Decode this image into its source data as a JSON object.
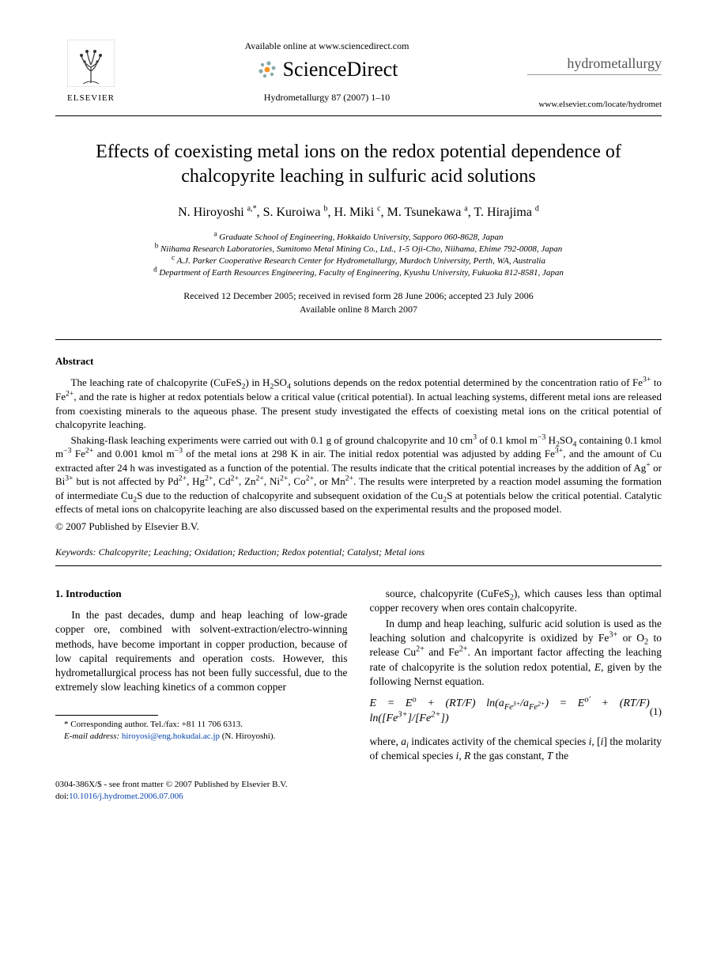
{
  "header": {
    "available_online": "Available online at www.sciencedirect.com",
    "sciencedirect": "ScienceDirect",
    "journal_ref": "Hydrometallurgy 87 (2007) 1–10",
    "elsevier_label": "ELSEVIER",
    "journal_brand": "hydrometallurgy",
    "locate_url": "www.elsevier.com/locate/hydromet"
  },
  "title": "Effects of coexisting metal ions on the redox potential dependence of chalcopyrite leaching in sulfuric acid solutions",
  "authors_html": "N. Hiroyoshi <sup>a,*</sup>, S. Kuroiwa <sup>b</sup>, H. Miki <sup>c</sup>, M. Tsunekawa <sup>a</sup>, T. Hirajima <sup>d</sup>",
  "affiliations": [
    "<sup>a</sup> Graduate School of Engineering, Hokkaido University, Sapporo 060-8628, Japan",
    "<sup>b</sup> Niihama Research Laboratories, Sumitomo Metal Mining Co., Ltd., 1-5 Oji-Cho, Niihama, Ehime 792-0008, Japan",
    "<sup>c</sup> A.J. Parker Cooperative Research Center for Hydrometallurgy, Murdoch University, Perth, WA, Australia",
    "<sup>d</sup> Department of Earth Resources Engineering, Faculty of Engineering, Kyushu University, Fukuoka 812-8581, Japan"
  ],
  "dates": {
    "received": "Received 12 December 2005; received in revised form 28 June 2006; accepted 23 July 2006",
    "online": "Available online 8 March 2007"
  },
  "abstract": {
    "heading": "Abstract",
    "p1": "The leaching rate of chalcopyrite (CuFeS<sub>2</sub>) in H<sub>2</sub>SO<sub>4</sub> solutions depends on the redox potential determined by the concentration ratio of Fe<sup>3+</sup> to Fe<sup>2+</sup>, and the rate is higher at redox potentials below a critical value (critical potential). In actual leaching systems, different metal ions are released from coexisting minerals to the aqueous phase. The present study investigated the effects of coexisting metal ions on the critical potential of chalcopyrite leaching.",
    "p2": "Shaking-flask leaching experiments were carried out with 0.1 g of ground chalcopyrite and 10 cm<sup>3</sup> of 0.1 kmol m<sup>−3</sup> H<sub>2</sub>SO<sub>4</sub> containing 0.1 kmol m<sup>−3</sup> Fe<sup>2+</sup> and 0.001 kmol m<sup>−3</sup> of the metal ions at 298 K in air. The initial redox potential was adjusted by adding Fe<sup>3+</sup>, and the amount of Cu extracted after 24 h was investigated as a function of the potential. The results indicate that the critical potential increases by the addition of Ag<sup>+</sup> or Bi<sup>3+</sup> but is not affected by Pd<sup>2+</sup>, Hg<sup>2+</sup>, Cd<sup>2+</sup>, Zn<sup>2+</sup>, Ni<sup>2+</sup>, Co<sup>2+</sup>, or Mn<sup>2+</sup>. The results were interpreted by a reaction model assuming the formation of intermediate Cu<sub>2</sub>S due to the reduction of chalcopyrite and subsequent oxidation of the Cu<sub>2</sub>S at potentials below the critical potential. Catalytic effects of metal ions on chalcopyrite leaching are also discussed based on the experimental results and the proposed model.",
    "copyright": "© 2007 Published by Elsevier B.V."
  },
  "keywords": {
    "label": "Keywords:",
    "text": "Chalcopyrite; Leaching; Oxidation; Reduction; Redox potential; Catalyst; Metal ions"
  },
  "intro": {
    "heading": "1. Introduction",
    "left_p1": "In the past decades, dump and heap leaching of low-grade copper ore, combined with solvent-extraction/electro-winning methods, have become important in copper production, because of low capital requirements and operation costs. However, this hydrometallurgical process has not been fully successful, due to the extremely slow leaching kinetics of a common copper",
    "right_p1": "source, chalcopyrite (CuFeS<sub>2</sub>), which causes less than optimal copper recovery when ores contain chalcopyrite.",
    "right_p2": "In dump and heap leaching, sulfuric acid solution is used as the leaching solution and chalcopyrite is oxidized by Fe<sup>3+</sup> or O<sub>2</sub> to release Cu<sup>2+</sup> and Fe<sup>2+</sup>. An important factor affecting the leaching rate of chalcopyrite is the solution redox potential, <i>E</i>, given by the following Nernst equation.",
    "equation": "E = E<sup>o</sup> + (RT/F) ln(a<sub>Fe<sup>3+</sup></sub>/a<sub>Fe<sup>2+</sup></sub>) = E<sup>o′</sup> + (RT/F) ln([Fe<sup>3+</sup>]/[Fe<sup>2+</sup>])",
    "equation_num": "(1)",
    "right_p3": "where, <i>a<sub>i</sub></i> indicates activity of the chemical species <i>i</i>, [<i>i</i>] the molarity of chemical species <i>i</i>, <i>R</i> the gas constant, <i>T</i> the"
  },
  "footnote": {
    "corr": "* Corresponding author. Tel./fax: +81 11 706 6313.",
    "email_label": "E-mail address:",
    "email": "hiroyosi@eng.hokudai.ac.jp",
    "email_tail": "(N. Hiroyoshi)."
  },
  "bottom": {
    "line1": "0304-386X/$ - see front matter © 2007 Published by Elsevier B.V.",
    "doi_label": "doi:",
    "doi": "10.1016/j.hydromet.2006.07.006"
  },
  "colors": {
    "link": "#0645AD",
    "text": "#000000",
    "grey": "#555555",
    "orange": "#F7931E"
  }
}
